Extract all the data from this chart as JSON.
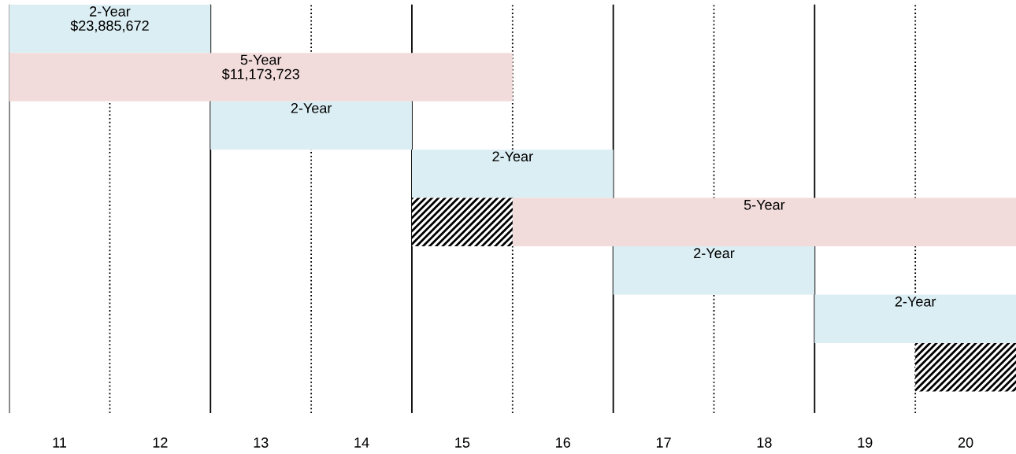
{
  "chart_data": {
    "type": "bar",
    "orientation": "horizontal",
    "categories": [
      null,
      null,
      null,
      null,
      null,
      null,
      null,
      null
    ],
    "xlim": [
      11,
      21
    ],
    "xticks": [
      {
        "value": 11.5,
        "label": "11"
      },
      {
        "value": 12.5,
        "label": "12"
      },
      {
        "value": 13.5,
        "label": "13"
      },
      {
        "value": 14.5,
        "label": "14"
      },
      {
        "value": 15.5,
        "label": "15"
      },
      {
        "value": 16.5,
        "label": "16"
      },
      {
        "value": 17.5,
        "label": "17"
      },
      {
        "value": 18.5,
        "label": "18"
      },
      {
        "value": 19.5,
        "label": "19"
      },
      {
        "value": 20.5,
        "label": "20"
      }
    ],
    "tick_labels": "x",
    "grid": false,
    "series": [
      {
        "color": "#dbeef3",
        "base": [
          11,
          null,
          13,
          15,
          null,
          17,
          19,
          null
        ],
        "values": [
          2,
          null,
          2,
          2,
          null,
          2,
          2,
          null
        ],
        "value_labels": [
          "2-Year\n$23,885,672",
          null,
          "2-Year",
          "2-Year",
          null,
          "2-Year",
          "2-Year",
          null
        ]
      },
      {
        "color": "#f2dcdb",
        "base": [
          null,
          11,
          null,
          null,
          16,
          null,
          null,
          null
        ],
        "values": [
          null,
          5,
          null,
          null,
          5,
          null,
          null,
          null
        ],
        "value_labels": [
          null,
          "5-Year\n$11,173,723",
          null,
          null,
          "5-Year",
          null,
          null,
          null
        ]
      },
      {
        "color": "#000000",
        "base": [
          null,
          null,
          null,
          null,
          15,
          null,
          null,
          20
        ],
        "values": [
          null,
          null,
          null,
          null,
          1,
          null,
          null,
          1
        ]
      }
    ],
    "ref_lines": [
      {
        "axis": "x",
        "value": 11,
        "line_style": "solid",
        "color": "#000000"
      },
      {
        "axis": "x",
        "value": 12,
        "line_style": "dotted",
        "color": "#000000"
      },
      {
        "axis": "x",
        "value": 13,
        "line_style": "solid",
        "color": "#000000"
      },
      {
        "axis": "x",
        "value": 14,
        "line_style": "dotted",
        "color": "#000000"
      },
      {
        "axis": "x",
        "value": 15,
        "line_style": "solid",
        "color": "#000000"
      },
      {
        "axis": "x",
        "value": 16,
        "line_style": "dotted",
        "color": "#000000"
      },
      {
        "axis": "x",
        "value": 17,
        "line_style": "solid",
        "color": "#000000"
      },
      {
        "axis": "x",
        "value": 18,
        "line_style": "dotted",
        "color": "#000000"
      },
      {
        "axis": "x",
        "value": 19,
        "line_style": "solid",
        "color": "#000000"
      },
      {
        "axis": "x",
        "value": 20,
        "line_style": "dotted",
        "color": "#000000"
      }
    ]
  }
}
